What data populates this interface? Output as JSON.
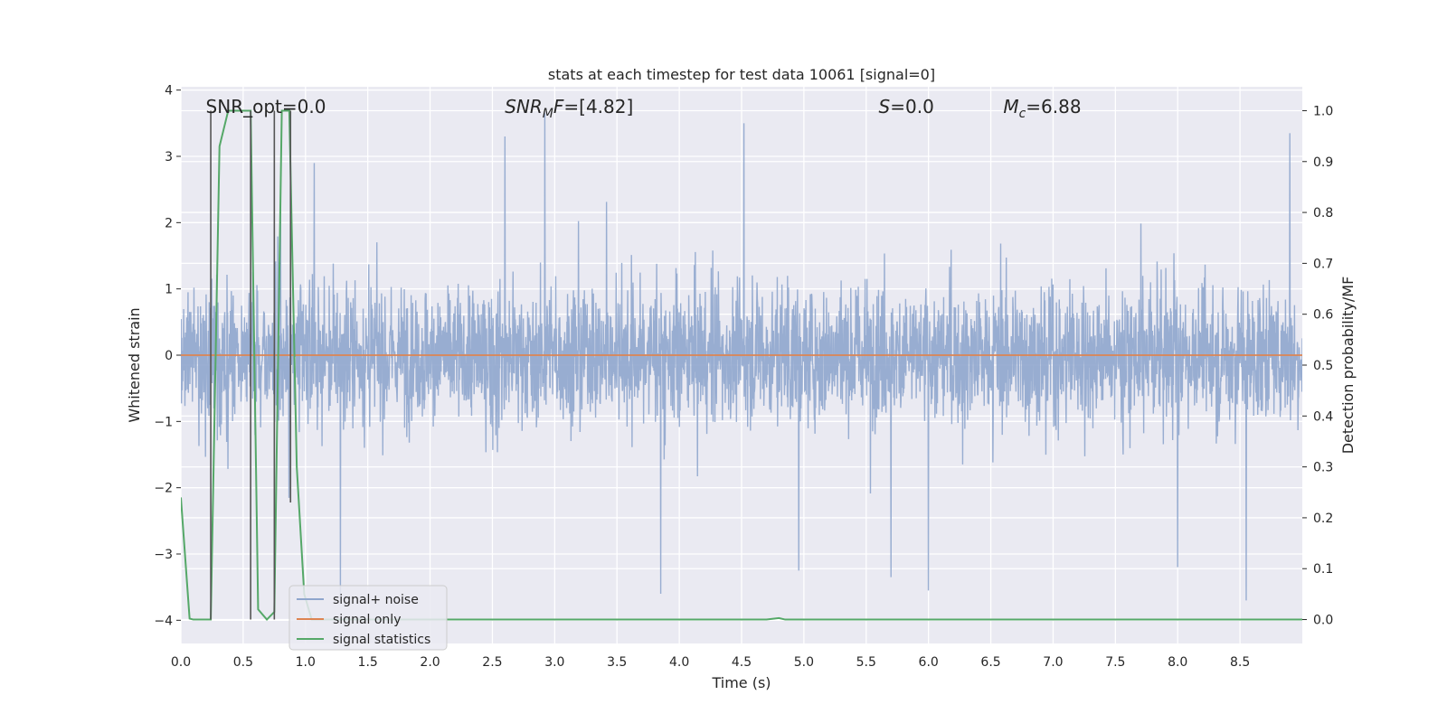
{
  "chart_data": {
    "type": "line",
    "title": "stats at each timestep for test data 10061 [signal=0]",
    "xlabel": "Time (s)",
    "ylabel_left": "Whitened strain",
    "ylabel_right": "Detection probability/MF",
    "xlim": [
      0.0,
      9.0
    ],
    "ylim_left": [
      -4.35,
      4.05
    ],
    "ylim_right": [
      -0.047,
      1.047
    ],
    "x_ticks": [
      "0.0",
      "0.5",
      "1.0",
      "1.5",
      "2.0",
      "2.5",
      "3.0",
      "3.5",
      "4.0",
      "4.5",
      "5.0",
      "5.5",
      "6.0",
      "6.5",
      "7.0",
      "7.5",
      "8.0",
      "8.5"
    ],
    "y_left_ticks": [
      "−4",
      "−3",
      "−2",
      "−1",
      "0",
      "1",
      "2",
      "3",
      "4"
    ],
    "y_right_ticks": [
      "0.0",
      "0.1",
      "0.2",
      "0.3",
      "0.4",
      "0.5",
      "0.6",
      "0.7",
      "0.8",
      "0.9",
      "1.0"
    ],
    "grid": true,
    "legend_position": "lower-left",
    "annotations": [
      {
        "text": "SNR_opt=0.0",
        "kind": "plain",
        "x": 0.2,
        "y": 3.75
      },
      {
        "base": "SNR",
        "sub": "M",
        "rest": "F=[4.82]",
        "kind": "math",
        "x": 2.6,
        "y": 3.75
      },
      {
        "base": "S",
        "sub": "",
        "rest": "=0.0",
        "kind": "math",
        "x": 5.6,
        "y": 3.75
      },
      {
        "base": "M",
        "sub": "c",
        "rest": "=6.88",
        "kind": "math",
        "x": 6.6,
        "y": 3.75
      }
    ],
    "series": [
      {
        "name": "signal+ noise",
        "color": "#8fa6cd",
        "axis": "left",
        "style": "noise",
        "amplitude_typical": 1.3,
        "amplitude_max": 3.7,
        "peaks": [
          {
            "x": 0.8,
            "y": 2.2
          },
          {
            "x": 1.07,
            "y": 2.9
          },
          {
            "x": 1.28,
            "y": -3.65
          },
          {
            "x": 2.6,
            "y": 3.3
          },
          {
            "x": 2.92,
            "y": 3.65
          },
          {
            "x": 3.85,
            "y": -3.6
          },
          {
            "x": 4.52,
            "y": 3.5
          },
          {
            "x": 4.96,
            "y": -3.25
          },
          {
            "x": 5.7,
            "y": -3.35
          },
          {
            "x": 6.0,
            "y": -3.55
          },
          {
            "x": 8.0,
            "y": -3.2
          },
          {
            "x": 8.55,
            "y": -3.7
          },
          {
            "x": 8.9,
            "y": 3.35
          }
        ]
      },
      {
        "name": "signal only",
        "color": "#dd8452",
        "axis": "left",
        "style": "flat",
        "x": [
          0.0,
          9.0
        ],
        "y": [
          0.0,
          0.0
        ]
      },
      {
        "name": "signal statistics",
        "color": "#55a868",
        "axis": "right",
        "style": "line",
        "x": [
          0.0,
          0.07,
          0.1,
          0.24,
          0.31,
          0.38,
          0.44,
          0.5,
          0.56,
          0.62,
          0.69,
          0.75,
          0.81,
          0.87,
          0.93,
          0.99,
          1.05,
          1.2,
          2.0,
          4.0,
          4.7,
          4.8,
          4.85,
          5.0,
          9.0
        ],
        "y": [
          0.24,
          0.002,
          0.0,
          0.0,
          0.93,
          1.0,
          1.0,
          1.0,
          1.0,
          0.02,
          0.0,
          0.015,
          1.0,
          1.0,
          0.3,
          0.05,
          0.0,
          0.0,
          0.0,
          0.0,
          0.0,
          0.003,
          0.0,
          0.0,
          0.0
        ]
      },
      {
        "name": "",
        "color": "#555555",
        "axis": "right",
        "style": "vbars",
        "segments": [
          {
            "x": 0.24,
            "y0": 0.0,
            "y1": 1.0
          },
          {
            "x": 0.56,
            "y0": 0.0,
            "y1": 1.0
          },
          {
            "x": 0.75,
            "y0": 0.0,
            "y1": 1.0
          },
          {
            "x": 0.88,
            "y0": 0.23,
            "y1": 1.0
          }
        ]
      }
    ]
  }
}
